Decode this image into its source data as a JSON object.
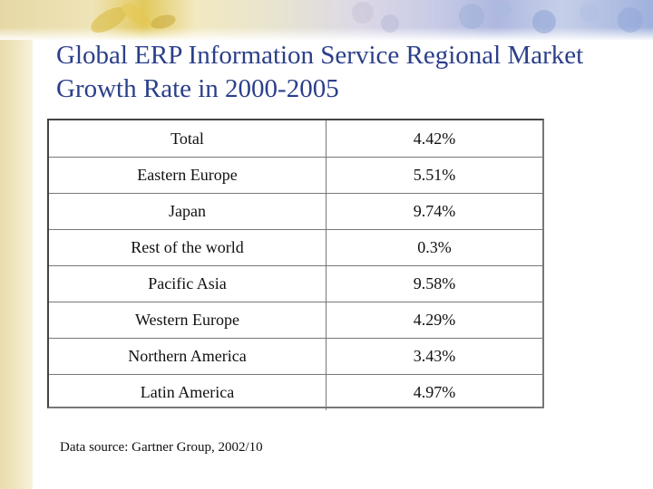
{
  "slide": {
    "title": "Global ERP Information Service Regional Market Growth Rate in 2000-2005",
    "source": "Data source: Gartner Group, 2002/10"
  },
  "table": {
    "rows": [
      {
        "region": "Total",
        "rate": "4.42%"
      },
      {
        "region": "Eastern Europe",
        "rate": "5.51%"
      },
      {
        "region": "Japan",
        "rate": "9.74%"
      },
      {
        "region": "Rest of the world",
        "rate": "0.3%"
      },
      {
        "region": "Pacific Asia",
        "rate": "9.58%"
      },
      {
        "region": "Western Europe",
        "rate": "4.29%"
      },
      {
        "region": "Northern America",
        "rate": "3.43%"
      },
      {
        "region": "Latin America",
        "rate": "4.97%"
      }
    ]
  },
  "colors": {
    "title": "#2b3f8a",
    "text": "#111111",
    "border": "#777777"
  }
}
